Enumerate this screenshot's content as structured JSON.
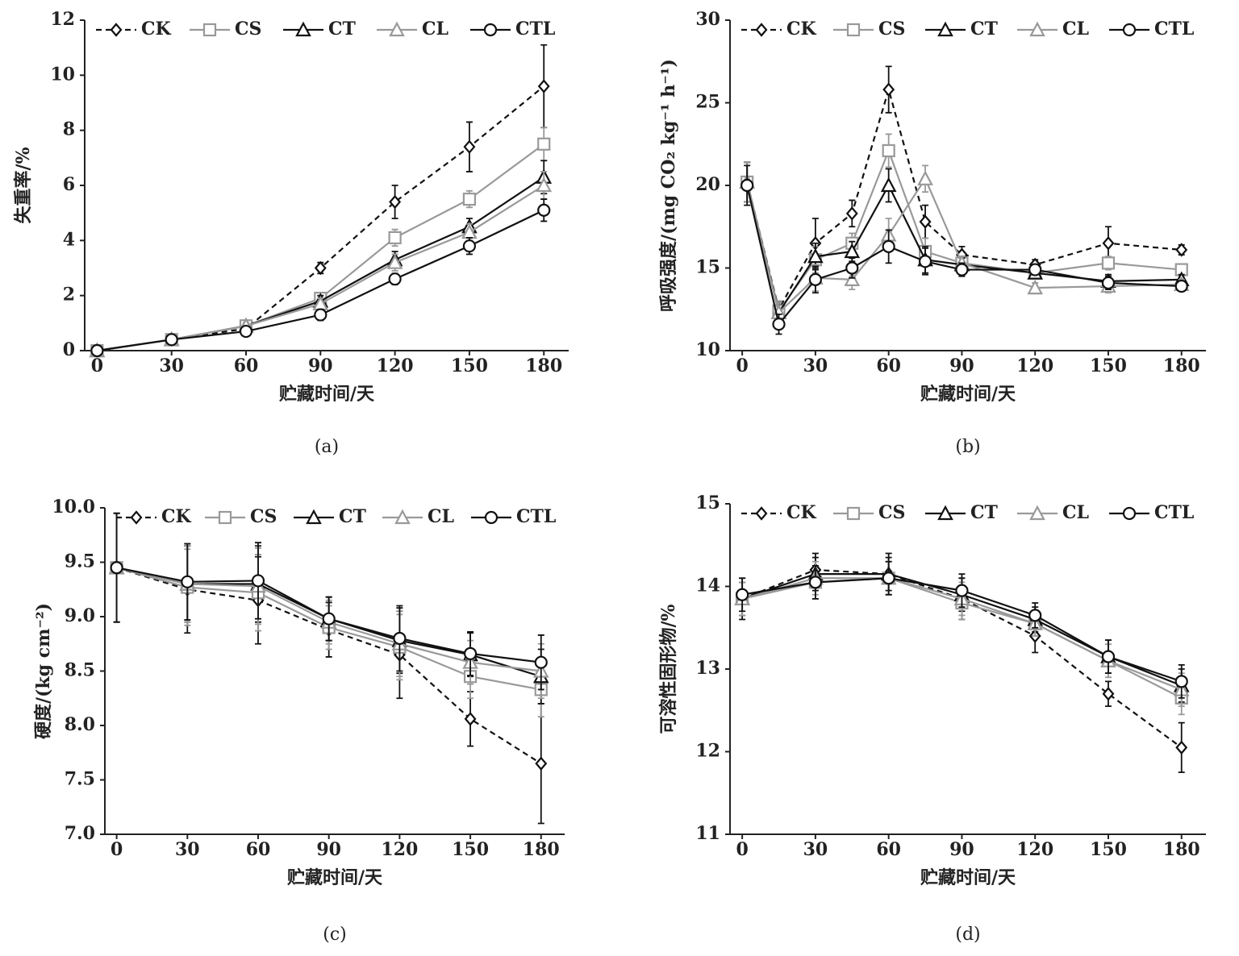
{
  "chart_data": [
    {
      "type": "line",
      "panel_label": "(a)",
      "x_label": "贮藏时间/天",
      "y_label": "失重率/%",
      "x": [
        0,
        30,
        60,
        90,
        120,
        150,
        180
      ],
      "xlim": [
        -5,
        190
      ],
      "xticks": [
        0,
        30,
        60,
        90,
        120,
        150,
        180
      ],
      "ylim": [
        0,
        12
      ],
      "yticks": [
        0,
        2,
        4,
        6,
        8,
        10,
        12
      ],
      "series": [
        {
          "name": "CK",
          "color": "#111111",
          "dash": true,
          "marker": "diamond",
          "values": [
            0,
            0.4,
            0.8,
            3.0,
            5.4,
            7.4,
            9.6
          ],
          "errors": [
            0.1,
            0.1,
            0.1,
            0.2,
            0.6,
            0.9,
            1.5
          ]
        },
        {
          "name": "CS",
          "color": "#999999",
          "dash": false,
          "marker": "square",
          "values": [
            0,
            0.4,
            0.9,
            1.9,
            4.1,
            5.5,
            7.5
          ],
          "errors": [
            0.1,
            0.1,
            0.1,
            0.2,
            0.3,
            0.3,
            0.6
          ]
        },
        {
          "name": "CT",
          "color": "#111111",
          "dash": false,
          "marker": "triangle",
          "values": [
            0,
            0.4,
            0.9,
            1.8,
            3.3,
            4.5,
            6.3
          ],
          "errors": [
            0.1,
            0.1,
            0.1,
            0.2,
            0.3,
            0.3,
            0.6
          ]
        },
        {
          "name": "CL",
          "color": "#999999",
          "dash": false,
          "marker": "triangle",
          "values": [
            0,
            0.4,
            0.9,
            1.7,
            3.2,
            4.3,
            6.0
          ],
          "errors": [
            0.1,
            0.1,
            0.1,
            0.2,
            0.3,
            0.3,
            0.5
          ]
        },
        {
          "name": "CTL",
          "color": "#111111",
          "dash": false,
          "marker": "circle",
          "values": [
            0,
            0.4,
            0.7,
            1.3,
            2.6,
            3.8,
            5.1
          ],
          "errors": [
            0.1,
            0.1,
            0.1,
            0.2,
            0.2,
            0.3,
            0.4
          ]
        }
      ]
    },
    {
      "type": "line",
      "panel_label": "(b)",
      "x_label": "贮藏时间/天",
      "y_label": "呼吸强度/(mg CO₂ kg⁻¹ h⁻¹)",
      "x": [
        2,
        15,
        30,
        45,
        60,
        75,
        90,
        120,
        150,
        180
      ],
      "xlim": [
        -5,
        190
      ],
      "xticks": [
        0,
        30,
        60,
        90,
        120,
        150,
        180
      ],
      "ylim": [
        10,
        30
      ],
      "yticks": [
        10,
        15,
        20,
        25,
        30
      ],
      "series": [
        {
          "name": "CK",
          "color": "#111111",
          "dash": true,
          "marker": "diamond",
          "values": [
            20.2,
            12.5,
            16.5,
            18.3,
            25.8,
            17.8,
            15.8,
            15.2,
            16.5,
            16.1
          ],
          "errors": [
            1.2,
            0.5,
            1.5,
            0.8,
            1.4,
            1.0,
            0.5,
            0.3,
            1.0,
            0.3
          ]
        },
        {
          "name": "CS",
          "color": "#999999",
          "dash": false,
          "marker": "square",
          "values": [
            20.2,
            12.4,
            15.5,
            16.5,
            22.1,
            16.0,
            15.3,
            14.7,
            15.3,
            14.9
          ],
          "errors": [
            1.2,
            0.6,
            0.8,
            0.6,
            1.0,
            0.8,
            0.4,
            0.3,
            0.4,
            0.3
          ]
        },
        {
          "name": "CT",
          "color": "#111111",
          "dash": false,
          "marker": "triangle",
          "values": [
            20.2,
            12.3,
            15.7,
            16.0,
            20.0,
            15.5,
            15.2,
            14.7,
            14.2,
            14.3
          ],
          "errors": [
            1.2,
            0.6,
            0.8,
            0.6,
            1.0,
            0.8,
            0.4,
            0.3,
            0.4,
            0.3
          ]
        },
        {
          "name": "CL",
          "color": "#999999",
          "dash": false,
          "marker": "triangle",
          "values": [
            20.2,
            12.3,
            14.4,
            14.3,
            17.0,
            20.4,
            15.3,
            13.8,
            13.9,
            14.0
          ],
          "errors": [
            1.2,
            0.6,
            0.8,
            0.6,
            1.0,
            0.8,
            0.4,
            0.3,
            0.4,
            0.3
          ]
        },
        {
          "name": "CTL",
          "color": "#111111",
          "dash": false,
          "marker": "circle",
          "values": [
            20.0,
            11.6,
            14.3,
            15.0,
            16.3,
            15.4,
            14.9,
            14.9,
            14.1,
            13.9
          ],
          "errors": [
            1.2,
            0.6,
            0.8,
            0.6,
            1.0,
            0.8,
            0.4,
            0.3,
            0.4,
            0.3
          ]
        }
      ]
    },
    {
      "type": "line",
      "panel_label": "(c)",
      "x_label": "贮藏时间/天",
      "y_label": "硬度/(kg cm⁻²)",
      "x": [
        0,
        30,
        60,
        90,
        120,
        150,
        180
      ],
      "xlim": [
        -5,
        190
      ],
      "xticks": [
        0,
        30,
        60,
        90,
        120,
        150,
        180
      ],
      "ylim": [
        7,
        10
      ],
      "yticks": [
        {
          "value": 7,
          "label": "7.0"
        },
        7.5,
        {
          "value": 8,
          "label": "8.0"
        },
        8.5,
        {
          "value": 9,
          "label": "9.0"
        },
        9.5,
        {
          "value": 10,
          "label": "10.0"
        }
      ],
      "series": [
        {
          "name": "CK",
          "color": "#111111",
          "dash": true,
          "marker": "diamond",
          "values": [
            9.45,
            9.25,
            9.15,
            8.88,
            8.65,
            8.06,
            7.65
          ],
          "errors": [
            0.5,
            0.4,
            0.4,
            0.25,
            0.4,
            0.25,
            0.55
          ]
        },
        {
          "name": "CS",
          "color": "#999999",
          "dash": false,
          "marker": "square",
          "values": [
            9.45,
            9.27,
            9.22,
            8.9,
            8.72,
            8.45,
            8.33
          ],
          "errors": [
            0.5,
            0.35,
            0.35,
            0.2,
            0.3,
            0.2,
            0.25
          ]
        },
        {
          "name": "CT",
          "color": "#111111",
          "dash": false,
          "marker": "triangle",
          "values": [
            9.45,
            9.3,
            9.3,
            8.98,
            8.78,
            8.65,
            8.45
          ],
          "errors": [
            0.5,
            0.35,
            0.35,
            0.2,
            0.3,
            0.2,
            0.25
          ]
        },
        {
          "name": "CL",
          "color": "#999999",
          "dash": false,
          "marker": "triangle",
          "values": [
            9.45,
            9.3,
            9.28,
            8.95,
            8.75,
            8.58,
            8.5
          ],
          "errors": [
            0.5,
            0.35,
            0.35,
            0.2,
            0.3,
            0.2,
            0.25
          ]
        },
        {
          "name": "CTL",
          "color": "#111111",
          "dash": false,
          "marker": "circle",
          "values": [
            9.45,
            9.32,
            9.33,
            8.98,
            8.8,
            8.66,
            8.58
          ],
          "errors": [
            0.5,
            0.35,
            0.35,
            0.2,
            0.3,
            0.2,
            0.25
          ]
        }
      ]
    },
    {
      "type": "line",
      "panel_label": "(d)",
      "x_label": "贮藏时间/天",
      "y_label": "可溶性固形物/%",
      "x": [
        0,
        30,
        60,
        90,
        120,
        150,
        180
      ],
      "xlim": [
        -5,
        190
      ],
      "xticks": [
        0,
        30,
        60,
        90,
        120,
        150,
        180
      ],
      "ylim": [
        11,
        15
      ],
      "yticks": [
        11,
        12,
        13,
        14,
        15
      ],
      "series": [
        {
          "name": "CK",
          "color": "#111111",
          "dash": true,
          "marker": "diamond",
          "values": [
            13.85,
            14.2,
            14.15,
            13.85,
            13.4,
            12.7,
            12.05
          ],
          "errors": [
            0.25,
            0.2,
            0.25,
            0.25,
            0.2,
            0.15,
            0.3
          ]
        },
        {
          "name": "CS",
          "color": "#999999",
          "dash": false,
          "marker": "square",
          "values": [
            13.85,
            14.05,
            14.1,
            13.8,
            13.55,
            13.1,
            12.65
          ],
          "errors": [
            0.2,
            0.2,
            0.2,
            0.2,
            0.15,
            0.2,
            0.2
          ]
        },
        {
          "name": "CT",
          "color": "#111111",
          "dash": false,
          "marker": "triangle",
          "values": [
            13.85,
            14.15,
            14.15,
            13.9,
            13.6,
            13.15,
            12.8
          ],
          "errors": [
            0.2,
            0.2,
            0.2,
            0.2,
            0.15,
            0.2,
            0.2
          ]
        },
        {
          "name": "CL",
          "color": "#999999",
          "dash": false,
          "marker": "triangle",
          "values": [
            13.85,
            14.1,
            14.1,
            13.85,
            13.55,
            13.1,
            12.75
          ],
          "errors": [
            0.2,
            0.2,
            0.2,
            0.2,
            0.15,
            0.2,
            0.2
          ]
        },
        {
          "name": "CTL",
          "color": "#111111",
          "dash": false,
          "marker": "circle",
          "values": [
            13.9,
            14.05,
            14.1,
            13.95,
            13.65,
            13.15,
            12.85
          ],
          "errors": [
            0.2,
            0.2,
            0.2,
            0.2,
            0.15,
            0.2,
            0.2
          ]
        }
      ]
    }
  ]
}
